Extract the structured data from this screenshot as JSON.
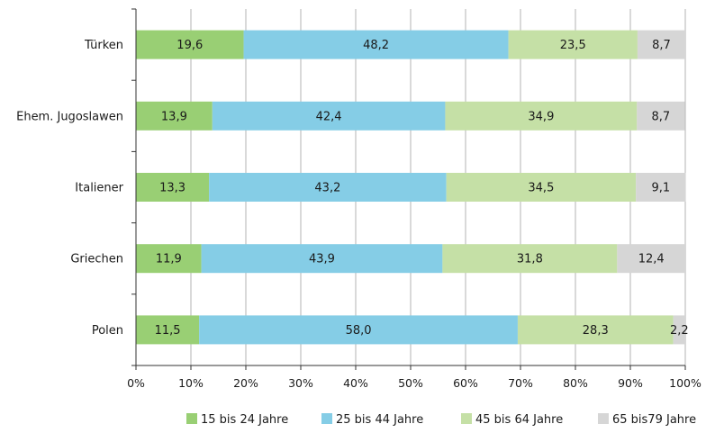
{
  "chart_data": {
    "type": "bar",
    "orientation": "horizontal",
    "stacked": "percent",
    "categories": [
      "Türken",
      "Ehem. Jugoslawen",
      "Italiener",
      "Griechen",
      "Polen"
    ],
    "series": [
      {
        "name": "15 bis 24 Jahre",
        "color": "#99cf74",
        "values": [
          19.6,
          13.9,
          13.3,
          11.9,
          11.5
        ],
        "labels": [
          "19,6",
          "13,9",
          "13,3",
          "11,9",
          "11,5"
        ]
      },
      {
        "name": "25 bis 44 Jahre",
        "color": "#85cde6",
        "values": [
          48.2,
          42.4,
          43.2,
          43.9,
          58.0
        ],
        "labels": [
          "48,2",
          "42,4",
          "43,2",
          "43,9",
          "58,0"
        ]
      },
      {
        "name": "45 bis 64 Jahre",
        "color": "#c5e0a6",
        "values": [
          23.5,
          34.9,
          34.5,
          31.8,
          28.3
        ],
        "labels": [
          "23,5",
          "34,9",
          "34,5",
          "31,8",
          "28,3"
        ]
      },
      {
        "name": "65 bis79 Jahre",
        "color": "#d6d6d6",
        "values": [
          8.7,
          8.7,
          9.1,
          12.4,
          2.2
        ],
        "labels": [
          "8,7",
          "8,7",
          "9,1",
          "12,4",
          "2,2"
        ]
      }
    ],
    "xlim": [
      0,
      100
    ],
    "xticks": [
      "0%",
      "10%",
      "20%",
      "30%",
      "40%",
      "50%",
      "60%",
      "70%",
      "80%",
      "90%",
      "100%"
    ],
    "grid": "vertical",
    "legend_position": "bottom",
    "title": "",
    "xlabel": "",
    "ylabel": ""
  }
}
